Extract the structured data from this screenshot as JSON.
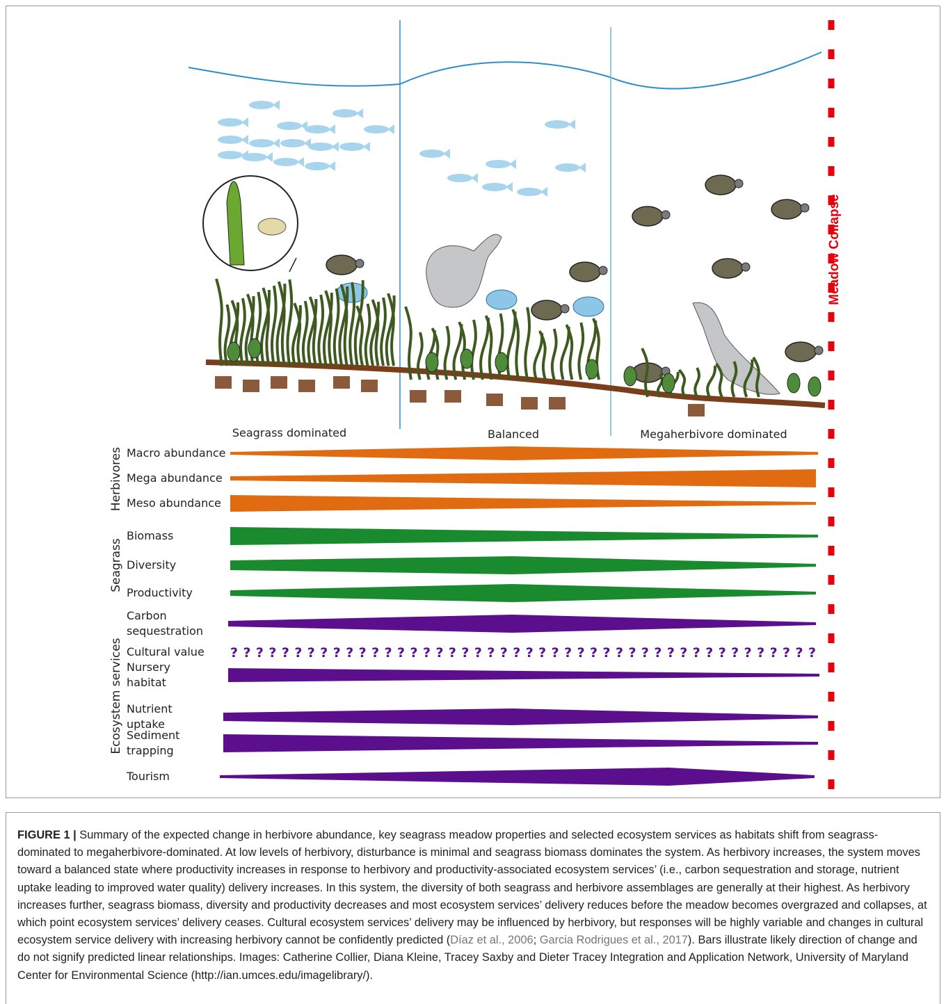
{
  "figure": {
    "collapse_label": "Meadow Collapse",
    "zones": [
      "Seagrass dominated",
      "Balanced",
      "Megaherbivore dominated"
    ],
    "groups": [
      {
        "label": "Herbivores",
        "rows": [
          [
            "Macro abundance"
          ],
          [
            "Mega abundance"
          ],
          [
            "Meso abundance"
          ]
        ]
      },
      {
        "label": "Seagrass",
        "rows": [
          [
            "Biomass"
          ],
          [
            "Diversity"
          ],
          [
            "Productivity"
          ]
        ]
      },
      {
        "label": "Ecosystem services",
        "rows": [
          [
            "Carbon",
            "sequestration"
          ],
          [
            "Cultural value"
          ],
          [
            "Nursery",
            "habitat"
          ],
          [
            "Nutrient",
            "uptake"
          ],
          [
            "Sediment",
            "trapping"
          ],
          [
            "Tourism"
          ]
        ]
      }
    ],
    "unknown_marks": "??????????????????????????????????????????????"
  },
  "caption": {
    "label": "FIGURE 1 |",
    "text_1": " Summary of the expected change in herbivore abundance, key seagrass meadow properties and selected ecosystem services as habitats shift from seagrass-dominated to megaherbivore-dominated. At low levels of herbivory, disturbance is minimal and seagrass biomass dominates the system. As herbivory increases, the system moves toward a balanced state where productivity increases in response to herbivory and productivity-associated ecosystem services’ (i.e., carbon sequestration and storage, nutrient uptake leading to improved water quality) delivery increases. In this system, the diversity of both seagrass and herbivore assemblages are generally at their highest. As herbivory increases further, seagrass biomass, diversity and productivity decreases and most ecosystem services’ delivery reduces before the meadow becomes overgrazed and collapses, at which point ecosystem services’ delivery ceases. Cultural ecosystem services’ delivery may be influenced by herbivory, but responses will be highly variable and changes in cultural ecosystem service delivery with increasing herbivory cannot be confidently predicted (",
    "citation_1": "Díaz et al., 2006",
    "text_2": "; ",
    "citation_2": "Garcia Rodrigues et al., 2017",
    "text_3": "). Bars illustrate likely direction of change and do not signify predicted linear relationships. Images: Catherine Collier, Diana Kleine, Tracey Saxby and Dieter Tracey Integration and Application Network, University of Maryland Center for Environmental Science (http://ian.umces.edu/imagelibrary/)."
  }
}
